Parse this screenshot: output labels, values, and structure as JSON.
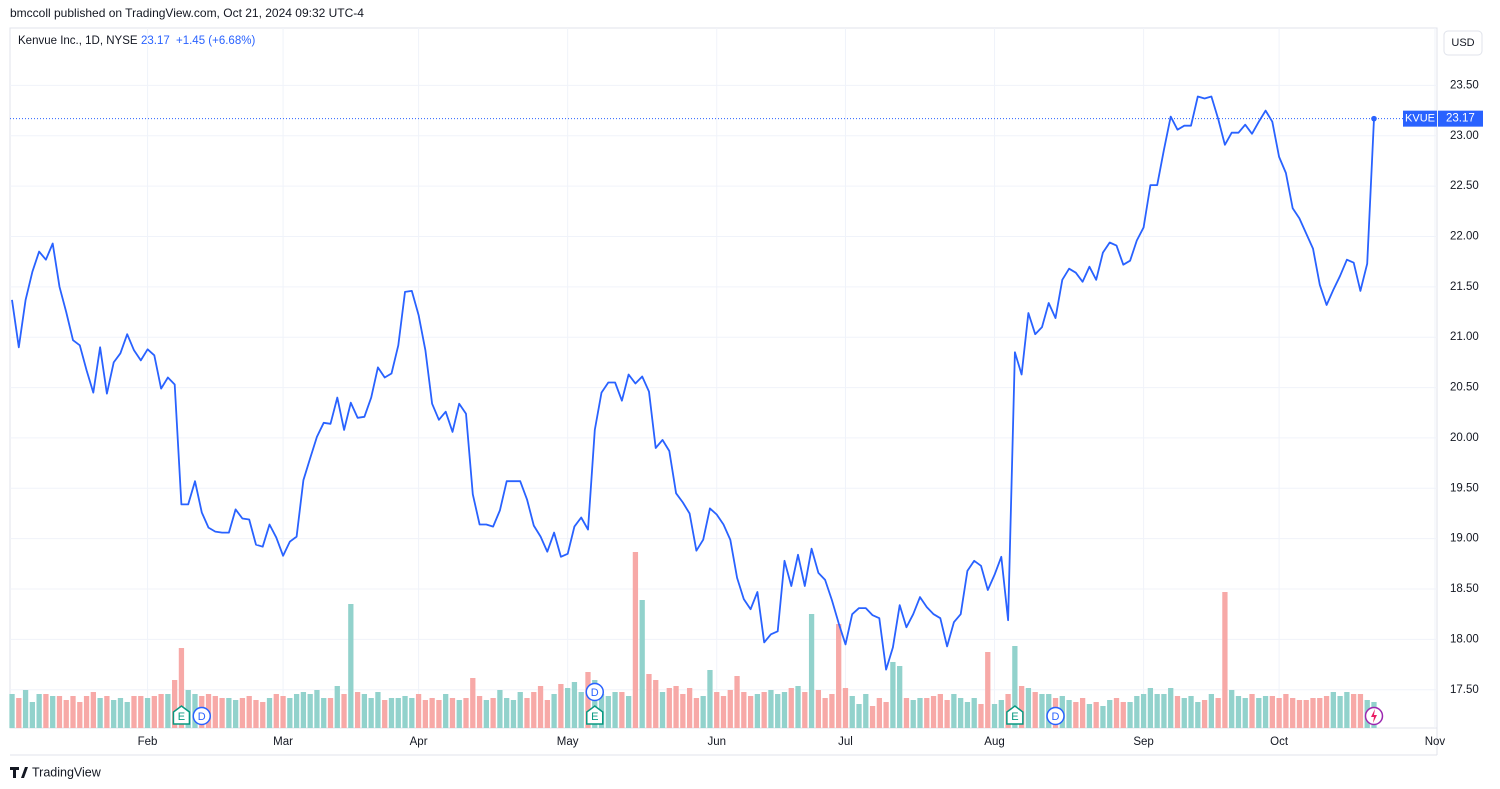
{
  "chart_data": {
    "type": "line",
    "header": "bmccoll published on TradingView.com, Oct 21, 2024 09:32 UTC-4",
    "legend_symbol": "Kenvue Inc., 1D, NYSE",
    "legend_price": "23.17",
    "legend_change": "+1.45 (+6.68%)",
    "currency": "USD",
    "ticker": "KVUE",
    "footer": "TradingView",
    "ylim": [
      17.12,
      24.07
    ],
    "yticks": [
      {
        "value": 17.5,
        "label": "17.50"
      },
      {
        "value": 18,
        "label": "18.00"
      },
      {
        "value": 18.5,
        "label": "18.50"
      },
      {
        "value": 19,
        "label": "19.00"
      },
      {
        "value": 19.5,
        "label": "19.50"
      },
      {
        "value": 20,
        "label": "20.00"
      },
      {
        "value": 20.5,
        "label": "20.50"
      },
      {
        "value": 21,
        "label": "21.00"
      },
      {
        "value": 21.5,
        "label": "21.50"
      },
      {
        "value": 22,
        "label": "22.00"
      },
      {
        "value": 22.5,
        "label": "22.50"
      },
      {
        "value": 23,
        "label": "23.00"
      },
      {
        "value": 23.5,
        "label": "23.50"
      }
    ],
    "xlim": [
      -0.3,
      210.3
    ],
    "xticks": [
      {
        "value": 20,
        "label": "Feb"
      },
      {
        "value": 40,
        "label": "Mar"
      },
      {
        "value": 60,
        "label": "Apr"
      },
      {
        "value": 82,
        "label": "May"
      },
      {
        "value": 104,
        "label": "Jun"
      },
      {
        "value": 123,
        "label": "Jul"
      },
      {
        "value": 145,
        "label": "Aug"
      },
      {
        "value": 167,
        "label": "Sep"
      },
      {
        "value": 187,
        "label": "Oct"
      },
      {
        "value": 210,
        "label": "Nov"
      }
    ],
    "grid": true,
    "series": [
      {
        "name": "Kenvue Inc.",
        "color": "#2962ff",
        "values": [
          21.37,
          20.9,
          21.37,
          21.65,
          21.85,
          21.77,
          21.93,
          21.5,
          21.25,
          20.97,
          20.92,
          20.67,
          20.45,
          20.9,
          20.44,
          20.75,
          20.84,
          21.03,
          20.87,
          20.77,
          20.88,
          20.82,
          20.49,
          20.6,
          20.53,
          19.34,
          19.34,
          19.57,
          19.26,
          19.11,
          19.07,
          19.06,
          19.06,
          19.29,
          19.2,
          19.19,
          18.94,
          18.92,
          19.14,
          19.01,
          18.83,
          18.97,
          19.02,
          19.58,
          19.8,
          20.01,
          20.15,
          20.14,
          20.4,
          20.08,
          20.35,
          20.2,
          20.21,
          20.4,
          20.7,
          20.6,
          20.64,
          20.92,
          21.45,
          21.46,
          21.22,
          20.87,
          20.34,
          20.18,
          20.26,
          20.06,
          20.34,
          20.24,
          19.44,
          19.14,
          19.14,
          19.12,
          19.28,
          19.57,
          19.57,
          19.57,
          19.39,
          19.13,
          19.02,
          18.87,
          19.06,
          18.82,
          18.85,
          19.12,
          19.21,
          19.09,
          20.08,
          20.45,
          20.55,
          20.55,
          20.37,
          20.63,
          20.54,
          20.61,
          20.46,
          19.9,
          19.98,
          19.87,
          19.45,
          19.36,
          19.25,
          18.88,
          18.99,
          19.3,
          19.24,
          19.14,
          18.99,
          18.61,
          18.4,
          18.3,
          18.47,
          17.97,
          18.05,
          18.08,
          18.78,
          18.53,
          18.84,
          18.53,
          18.9,
          18.66,
          18.59,
          18.39,
          18.16,
          17.95,
          18.25,
          18.31,
          18.31,
          18.24,
          18.21,
          17.7,
          17.92,
          18.34,
          18.12,
          18.25,
          18.42,
          18.32,
          18.25,
          18.21,
          17.93,
          18.17,
          18.25,
          18.68,
          18.78,
          18.73,
          18.49,
          18.64,
          18.82,
          18.19,
          20.85,
          20.63,
          21.24,
          21.03,
          21.1,
          21.34,
          21.19,
          21.57,
          21.68,
          21.64,
          21.55,
          21.7,
          21.57,
          21.84,
          21.94,
          21.91,
          21.72,
          21.76,
          21.96,
          22.09,
          22.51,
          22.51,
          22.86,
          23.19,
          23.06,
          23.1,
          23.1,
          23.39,
          23.37,
          23.39,
          23.17,
          22.91,
          23.03,
          23.03,
          23.11,
          23.02,
          23.14,
          23.25,
          23.14,
          22.79,
          22.63,
          22.28,
          22.18,
          22.03,
          21.88,
          21.52,
          21.32,
          21.47,
          21.61,
          21.77,
          21.74,
          21.46,
          21.73,
          23.17
        ]
      }
    ],
    "volume": {
      "up_color": "#92d2cc",
      "down_color": "#f7a9a7",
      "vlim": [
        0,
        100
      ],
      "values": [
        17,
        15,
        19,
        13,
        17,
        17,
        16,
        16,
        14,
        16,
        13,
        16,
        18,
        15,
        16,
        14,
        15,
        13,
        16,
        16,
        15,
        16,
        17,
        17,
        24,
        40,
        19,
        17,
        16,
        17,
        16,
        15,
        15,
        14,
        15,
        16,
        14,
        13,
        15,
        17,
        16,
        15,
        17,
        18,
        17,
        19,
        15,
        15,
        21,
        17,
        62,
        18,
        17,
        15,
        18,
        14,
        15,
        15,
        16,
        15,
        17,
        14,
        15,
        14,
        17,
        15,
        14,
        15,
        25,
        16,
        14,
        15,
        19,
        15,
        14,
        18,
        15,
        18,
        21,
        14,
        17,
        22,
        20,
        23,
        18,
        28,
        24,
        17,
        16,
        18,
        18,
        16,
        88,
        64,
        27,
        24,
        18,
        20,
        21,
        17,
        20,
        15,
        16,
        29,
        18,
        16,
        19,
        26,
        18,
        16,
        17,
        18,
        19,
        17,
        18,
        20,
        21,
        18,
        57,
        19,
        15,
        17,
        52,
        20,
        16,
        12,
        17,
        11,
        15,
        13,
        33,
        31,
        15,
        14,
        15,
        15,
        16,
        17,
        14,
        17,
        15,
        13,
        15,
        12,
        38,
        12,
        14,
        17,
        41,
        21,
        20,
        18,
        17,
        17,
        15,
        16,
        14,
        13,
        15,
        12,
        13,
        11,
        14,
        15,
        13,
        13,
        16,
        17,
        20,
        17,
        17,
        20,
        16,
        15,
        16,
        13,
        14,
        17,
        15,
        68,
        19,
        16,
        15,
        17,
        15,
        16,
        16,
        15,
        17,
        15,
        14,
        14,
        15,
        15,
        16,
        18,
        16,
        18,
        17,
        17,
        14,
        13
      ]
    },
    "events": [
      {
        "label": "E",
        "index": 25
      },
      {
        "label": "D",
        "index": 28
      },
      {
        "label": "E",
        "index": 86
      },
      {
        "label": "D",
        "index": 86
      },
      {
        "label": "E",
        "index": 148
      },
      {
        "label": "D",
        "index": 154
      }
    ],
    "event_colors": {
      "E": "#089981",
      "D": "#2962ff"
    }
  }
}
